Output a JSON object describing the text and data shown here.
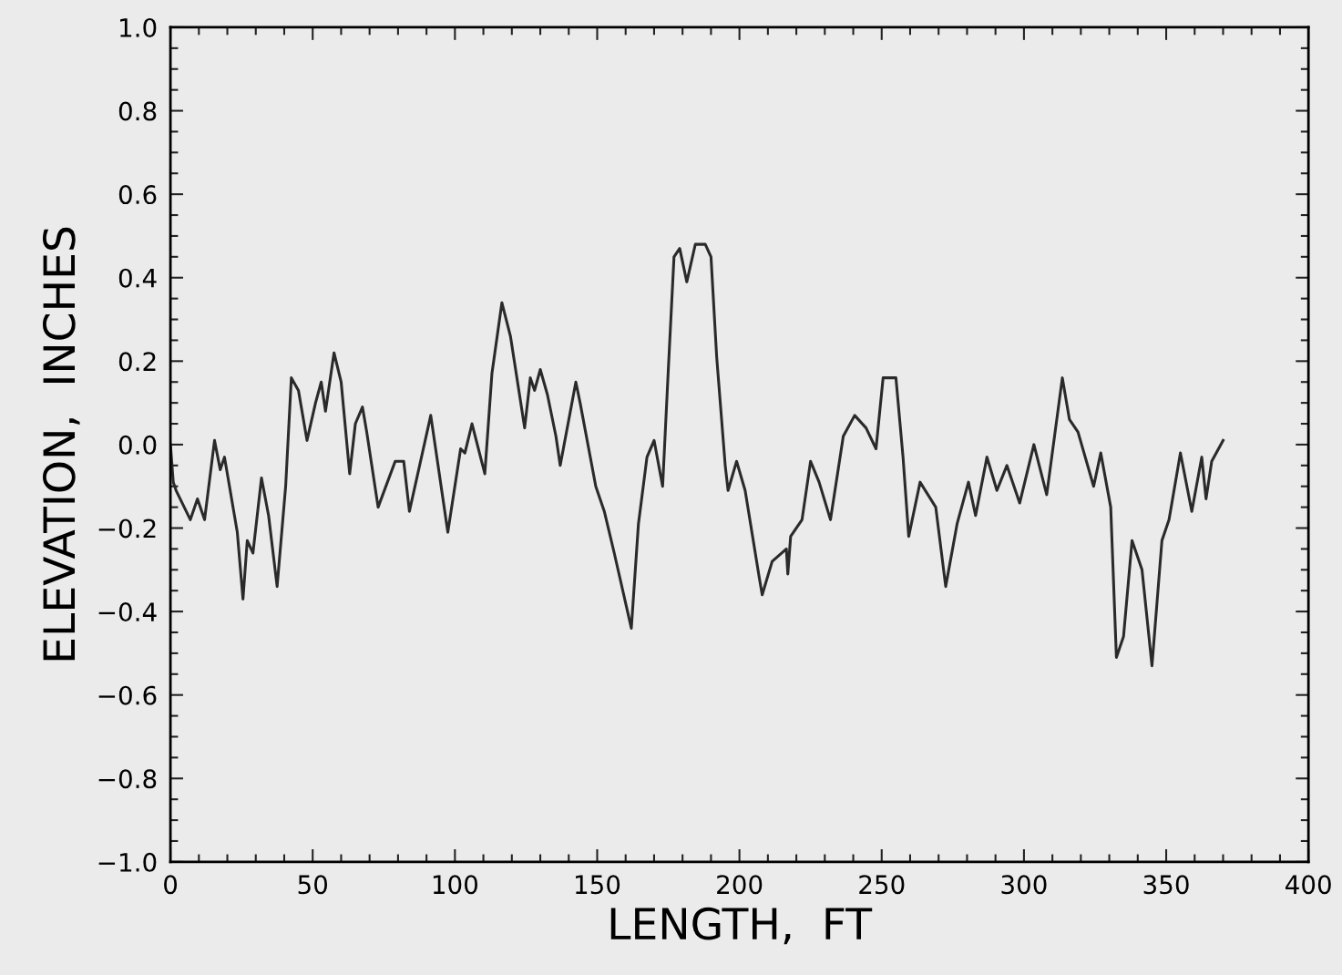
{
  "chart_data": {
    "type": "line",
    "xlabel": "LENGTH,  FT",
    "ylabel": "ELEVATION,  INCHES",
    "series": [
      {
        "color": "#2a2a2a",
        "x": [
          0,
          1,
          2,
          7,
          9.5,
          12,
          15.5,
          17.5,
          19,
          23.5,
          25.5,
          27,
          29,
          32,
          34.5,
          37.5,
          40.5,
          42.5,
          45,
          48,
          51,
          53,
          54.5,
          57.5,
          60,
          63,
          65,
          67.5,
          69,
          73,
          79,
          82,
          84,
          91.5,
          97.5,
          102,
          103.5,
          106,
          110.5,
          113,
          116.5,
          119.5,
          124.5,
          126.5,
          128,
          130,
          132.5,
          135.5,
          137,
          142.5,
          144,
          149.5,
          152.5,
          156,
          162,
          164.5,
          167.5,
          170,
          173,
          175,
          177,
          179,
          181.5,
          184.5,
          188,
          190,
          192,
          195,
          196,
          199,
          202,
          207,
          208,
          211.5,
          216.5,
          217,
          218,
          222,
          225,
          228,
          232,
          236.5,
          240.5,
          244.5,
          248,
          250.5,
          255,
          257.5,
          259.5,
          263.5,
          269,
          272.5,
          276.5,
          280.5,
          283,
          287,
          290.5,
          294,
          298.5,
          303.5,
          308,
          313.5,
          316,
          319,
          324.5,
          327,
          330.5,
          332.5,
          335,
          338,
          341.5,
          345,
          348.5,
          351,
          355,
          359,
          362.5,
          364,
          366,
          370
        ],
        "values": [
          0.0,
          -0.09,
          -0.11,
          -0.18,
          -0.13,
          -0.18,
          0.01,
          -0.06,
          -0.03,
          -0.21,
          -0.37,
          -0.23,
          -0.26,
          -0.08,
          -0.17,
          -0.34,
          -0.1,
          0.16,
          0.13,
          0.01,
          0.1,
          0.15,
          0.08,
          0.22,
          0.15,
          -0.07,
          0.05,
          0.09,
          0.03,
          -0.15,
          -0.04,
          -0.04,
          -0.16,
          0.07,
          -0.21,
          -0.01,
          -0.02,
          0.05,
          -0.07,
          0.17,
          0.34,
          0.26,
          0.04,
          0.16,
          0.13,
          0.18,
          0.12,
          0.02,
          -0.05,
          0.15,
          0.1,
          -0.1,
          -0.16,
          -0.26,
          -0.44,
          -0.19,
          -0.03,
          0.01,
          -0.1,
          0.18,
          0.45,
          0.47,
          0.39,
          0.48,
          0.48,
          0.45,
          0.21,
          -0.05,
          -0.11,
          -0.04,
          -0.11,
          -0.32,
          -0.36,
          -0.28,
          -0.25,
          -0.31,
          -0.22,
          -0.18,
          -0.04,
          -0.09,
          -0.18,
          0.02,
          0.07,
          0.04,
          -0.01,
          0.16,
          0.16,
          -0.03,
          -0.22,
          -0.09,
          -0.15,
          -0.34,
          -0.19,
          -0.09,
          -0.17,
          -0.03,
          -0.11,
          -0.05,
          -0.14,
          0.0,
          -0.12,
          0.16,
          0.06,
          0.03,
          -0.1,
          -0.02,
          -0.15,
          -0.51,
          -0.46,
          -0.23,
          -0.3,
          -0.53,
          -0.23,
          -0.18,
          -0.02,
          -0.16,
          -0.03,
          -0.13,
          -0.04,
          0.01
        ]
      }
    ],
    "xlim": [
      0,
      400
    ],
    "xticks": [
      0,
      50,
      100,
      150,
      200,
      250,
      300,
      350,
      400
    ],
    "ylim": [
      -1.0,
      1.0
    ],
    "yticks": [
      {
        "value": -1.0,
        "label": "−1.0"
      },
      {
        "value": -0.8,
        "label": "−0.8"
      },
      {
        "value": -0.6,
        "label": "−0.6"
      },
      {
        "value": -0.4,
        "label": "−0.4"
      },
      {
        "value": -0.2,
        "label": "−0.2"
      },
      {
        "value": 0.0,
        "label": "0.0"
      },
      {
        "value": 0.2,
        "label": "0.2"
      },
      {
        "value": 0.4,
        "label": "0.4"
      },
      {
        "value": 0.6,
        "label": "0.6"
      },
      {
        "value": 0.8,
        "label": "0.8"
      },
      {
        "value": 1.0,
        "label": "1.0"
      }
    ],
    "grid": false,
    "legend": false,
    "marker": "none",
    "line_style": "solid"
  }
}
